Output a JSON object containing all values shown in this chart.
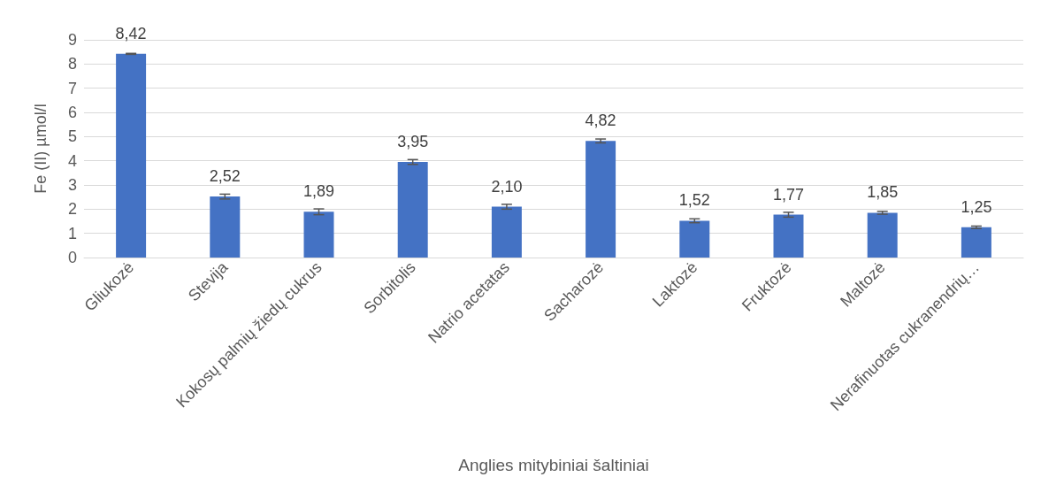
{
  "chart_data": {
    "type": "bar",
    "xlabel": "Anglies mitybiniai šaltiniai",
    "ylabel": "Fe (II) µmol/l",
    "categories": [
      "Gliukozė",
      "Stevija",
      "Kokosų palmių žiedų cukrus",
      "Sorbitolis",
      "Natrio acetatas",
      "Sacharozė",
      "Laktozė",
      "Fruktozė",
      "Maltozė",
      "Nerafinuotas cukranendrių…"
    ],
    "values": [
      8.42,
      2.52,
      1.89,
      3.95,
      2.1,
      4.82,
      1.52,
      1.77,
      1.85,
      1.25
    ],
    "value_labels": [
      "8,42",
      "2,52",
      "1,89",
      "3,95",
      "2,10",
      "4,82",
      "1,52",
      "1,77",
      "1,85",
      "1,25"
    ],
    "errors": [
      0.02,
      0.1,
      0.12,
      0.1,
      0.1,
      0.08,
      0.08,
      0.1,
      0.06,
      0.05
    ],
    "color": "#4472c4",
    "ylim": [
      0,
      9
    ],
    "yticks": [
      0,
      1,
      2,
      3,
      4,
      5,
      6,
      7,
      8,
      9
    ],
    "grid": "y"
  }
}
